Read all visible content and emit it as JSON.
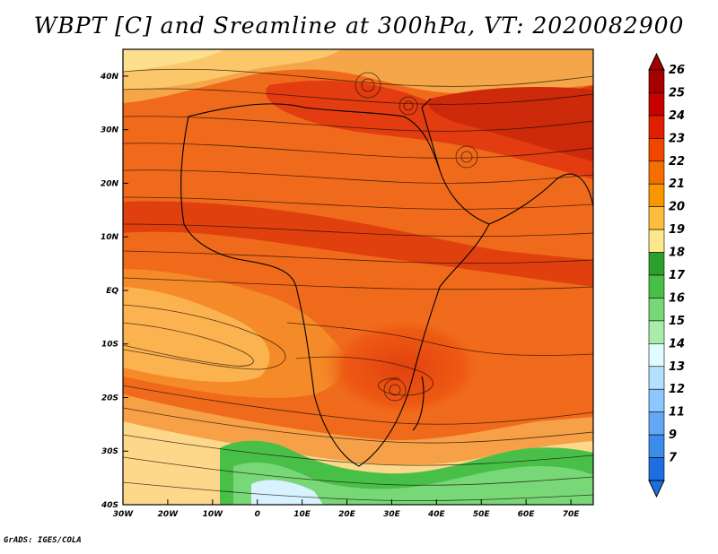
{
  "title": "WBPT [C] and Sreamline at 300hPa, VT: 2020082900",
  "footer": "GrADS: IGES/COLA",
  "chart_data": {
    "type": "heatmap",
    "variable": "WBPT",
    "units": "C",
    "overlay": "streamlines",
    "level": "300hPa",
    "valid_time": "2020082900",
    "x_ticks": [
      "30W",
      "20W",
      "10W",
      "0",
      "10E",
      "20E",
      "30E",
      "40E",
      "50E",
      "60E",
      "70E"
    ],
    "y_ticks": [
      "40N",
      "30N",
      "20N",
      "10N",
      "EQ",
      "10S",
      "20S",
      "30S",
      "40S"
    ],
    "xlim": [
      -30,
      75
    ],
    "ylim": [
      -40,
      45
    ],
    "colorbar": {
      "levels": [
        "26",
        "25",
        "24",
        "23",
        "22",
        "21",
        "20",
        "19",
        "18",
        "17",
        "16",
        "15",
        "14",
        "13",
        "12",
        "11",
        "9",
        "7"
      ],
      "colors": [
        "#a50000",
        "#c80000",
        "#e11e00",
        "#f04600",
        "#f56e00",
        "#fa9600",
        "#fcbe3c",
        "#fde68c",
        "#2ca02c",
        "#48c048",
        "#78d878",
        "#a8eca8",
        "#e0fcff",
        "#b4e0ff",
        "#8cc8ff",
        "#64a8f5",
        "#3c8ceb",
        "#1e6ee1"
      ]
    },
    "grid": false
  }
}
